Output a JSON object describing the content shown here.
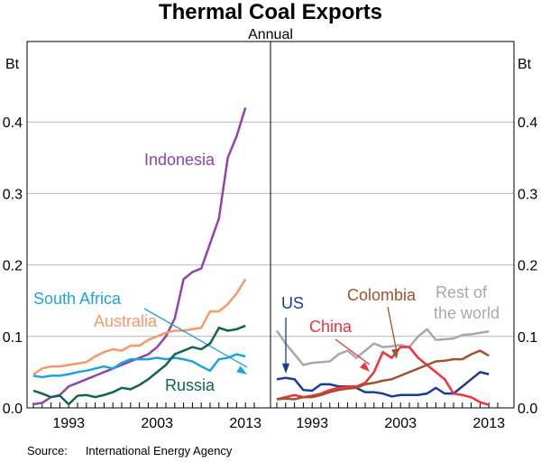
{
  "chart_data": {
    "type": "line",
    "title": "Thermal Coal Exports",
    "subtitle": "Annual",
    "ylabel": "Bt",
    "ylim": [
      0,
      0.5
    ],
    "yticks": [
      "0.0",
      "0.1",
      "0.2",
      "0.3",
      "0.4"
    ],
    "xticks": [
      "1993",
      "2003",
      "2013"
    ],
    "x": [
      1989,
      1990,
      1991,
      1992,
      1993,
      1994,
      1995,
      1996,
      1997,
      1998,
      1999,
      2000,
      2001,
      2002,
      2003,
      2004,
      2005,
      2006,
      2007,
      2008,
      2009,
      2010,
      2011,
      2012,
      2013
    ],
    "panels": [
      {
        "series": [
          {
            "name": "Indonesia",
            "color": "#8e44ad",
            "values": [
              0.005,
              0.007,
              0.015,
              0.018,
              0.03,
              0.035,
              0.04,
              0.045,
              0.05,
              0.055,
              0.06,
              0.065,
              0.07,
              0.075,
              0.085,
              0.1,
              0.125,
              0.18,
              0.19,
              0.195,
              0.23,
              0.265,
              0.35,
              0.38,
              0.42
            ]
          },
          {
            "name": "Australia",
            "color": "#f7976a",
            "values": [
              0.047,
              0.055,
              0.058,
              0.058,
              0.06,
              0.062,
              0.064,
              0.072,
              0.078,
              0.082,
              0.08,
              0.087,
              0.087,
              0.095,
              0.1,
              0.105,
              0.108,
              0.108,
              0.11,
              0.112,
              0.135,
              0.135,
              0.145,
              0.16,
              0.18
            ]
          },
          {
            "name": "South Africa",
            "color": "#1fa2e0",
            "values": [
              0.045,
              0.043,
              0.045,
              0.045,
              0.047,
              0.05,
              0.052,
              0.055,
              0.058,
              0.055,
              0.063,
              0.068,
              0.068,
              0.068,
              0.07,
              0.068,
              0.07,
              0.068,
              0.065,
              0.058,
              0.052,
              0.068,
              0.07,
              0.075,
              0.072
            ]
          },
          {
            "name": "Russia",
            "color": "#10664a",
            "values": [
              0.024,
              0.02,
              0.015,
              0.017,
              0.005,
              0.017,
              0.018,
              0.015,
              0.018,
              0.022,
              0.028,
              0.026,
              0.032,
              0.04,
              0.05,
              0.06,
              0.075,
              0.08,
              0.085,
              0.082,
              0.09,
              0.112,
              0.108,
              0.11,
              0.115
            ]
          }
        ]
      },
      {
        "series": [
          {
            "name": "Rest of the world",
            "label_lines": [
              "Rest of",
              "the world"
            ],
            "color": "#a8a8a8",
            "values": [
              0.108,
              0.09,
              0.075,
              0.06,
              0.063,
              0.064,
              0.065,
              0.075,
              0.08,
              0.07,
              0.08,
              0.09,
              0.085,
              0.086,
              0.088,
              0.085,
              0.1,
              0.11,
              0.095,
              0.096,
              0.097,
              0.102,
              0.103,
              0.105,
              0.107
            ]
          },
          {
            "name": "US",
            "color": "#1c3a9a",
            "values": [
              0.04,
              0.042,
              0.04,
              0.025,
              0.024,
              0.033,
              0.033,
              0.03,
              0.03,
              0.028,
              0.022,
              0.022,
              0.02,
              0.016,
              0.018,
              0.018,
              0.018,
              0.02,
              0.028,
              0.02,
              0.02,
              0.03,
              0.04,
              0.05,
              0.047
            ]
          },
          {
            "name": "China",
            "color": "#f0323c",
            "values": [
              0.012,
              0.015,
              0.018,
              0.015,
              0.017,
              0.02,
              0.025,
              0.028,
              0.03,
              0.03,
              0.035,
              0.05,
              0.078,
              0.07,
              0.085,
              0.085,
              0.07,
              0.06,
              0.05,
              0.04,
              0.02,
              0.018,
              0.015,
              0.008,
              0.004
            ]
          },
          {
            "name": "Colombia",
            "color": "#a0522d",
            "values": [
              0.012,
              0.013,
              0.012,
              0.015,
              0.015,
              0.018,
              0.022,
              0.025,
              0.027,
              0.028,
              0.033,
              0.035,
              0.038,
              0.04,
              0.045,
              0.05,
              0.055,
              0.06,
              0.065,
              0.066,
              0.068,
              0.068,
              0.075,
              0.08,
              0.073
            ]
          }
        ]
      }
    ]
  },
  "source_label": "Source:",
  "source_text": "International Energy Agency"
}
